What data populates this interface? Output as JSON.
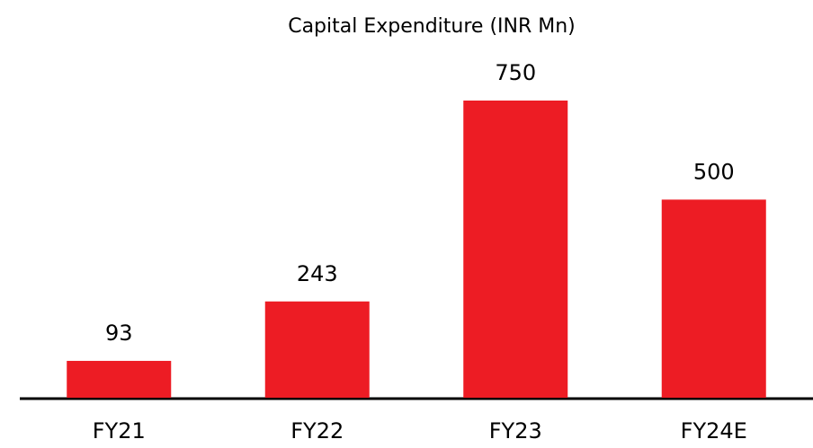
{
  "chart_data": {
    "type": "bar",
    "title": "Capital Expenditure (INR Mn)",
    "categories": [
      "FY21",
      "FY22",
      "FY23",
      "FY24E"
    ],
    "values": [
      93,
      243,
      750,
      500
    ],
    "color": "#ed1c24"
  }
}
